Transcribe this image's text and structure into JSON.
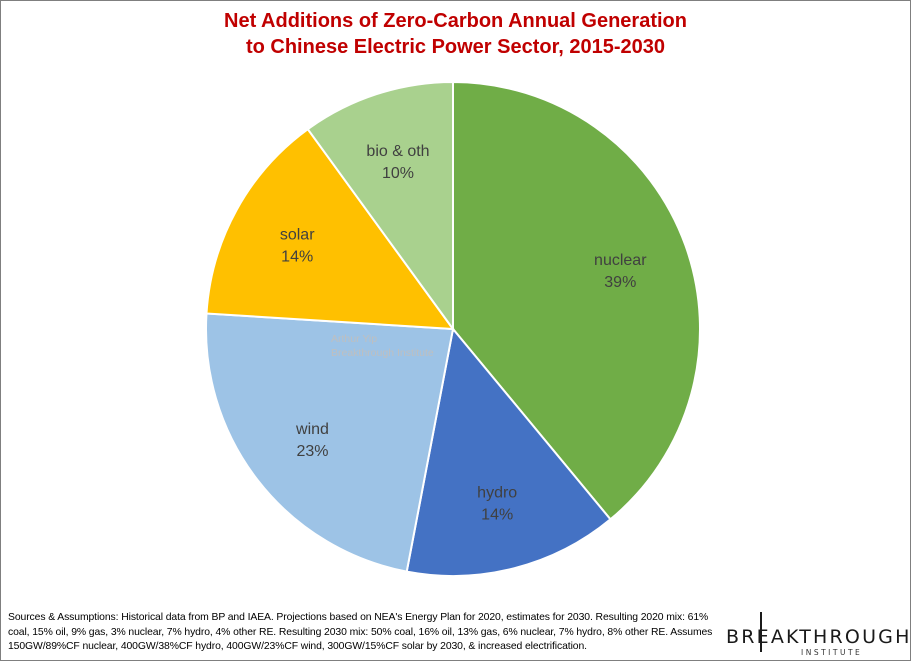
{
  "chart_data": {
    "type": "pie",
    "title": [
      "Net Additions of Zero-Carbon Annual Generation",
      "to Chinese Electric Power Sector, 2015-2030"
    ],
    "slices": [
      {
        "label": "nuclear",
        "value": 39,
        "value_label": "39%",
        "color": "#70ad47"
      },
      {
        "label": "hydro",
        "value": 14,
        "value_label": "14%",
        "color": "#4472c4"
      },
      {
        "label": "wind",
        "value": 23,
        "value_label": "23%",
        "color": "#9dc3e6"
      },
      {
        "label": "solar",
        "value": 14,
        "value_label": "14%",
        "color": "#ffc000"
      },
      {
        "label": "bio & oth",
        "value": 10,
        "value_label": "10%",
        "color": "#a9d18e"
      }
    ],
    "start_angle_deg": 0,
    "direction": "clockwise",
    "legend": "none"
  },
  "watermark": [
    "Arthur Yip",
    "Breakthrough Institute"
  ],
  "footnote": "Sources & Assumptions: Historical data from BP and IAEA. Projections based on NEA's Energy Plan for 2020, estimates for 2030. Resulting 2020 mix: 61% coal, 15% oil, 9% gas, 3% nuclear, 7% hydro, 4% other RE. Resulting 2030 mix: 50% coal, 16% oil, 13% gas, 6% nuclear, 7% hydro, 8% other RE. Assumes 150GW/89%CF nuclear, 400GW/38%CF hydro, 400GW/23%CF wind, 300GW/15%CF solar by 2030, & increased electrification.",
  "logo": {
    "main": "BREAKTHROUGH",
    "sub": "INSTITUTE"
  }
}
